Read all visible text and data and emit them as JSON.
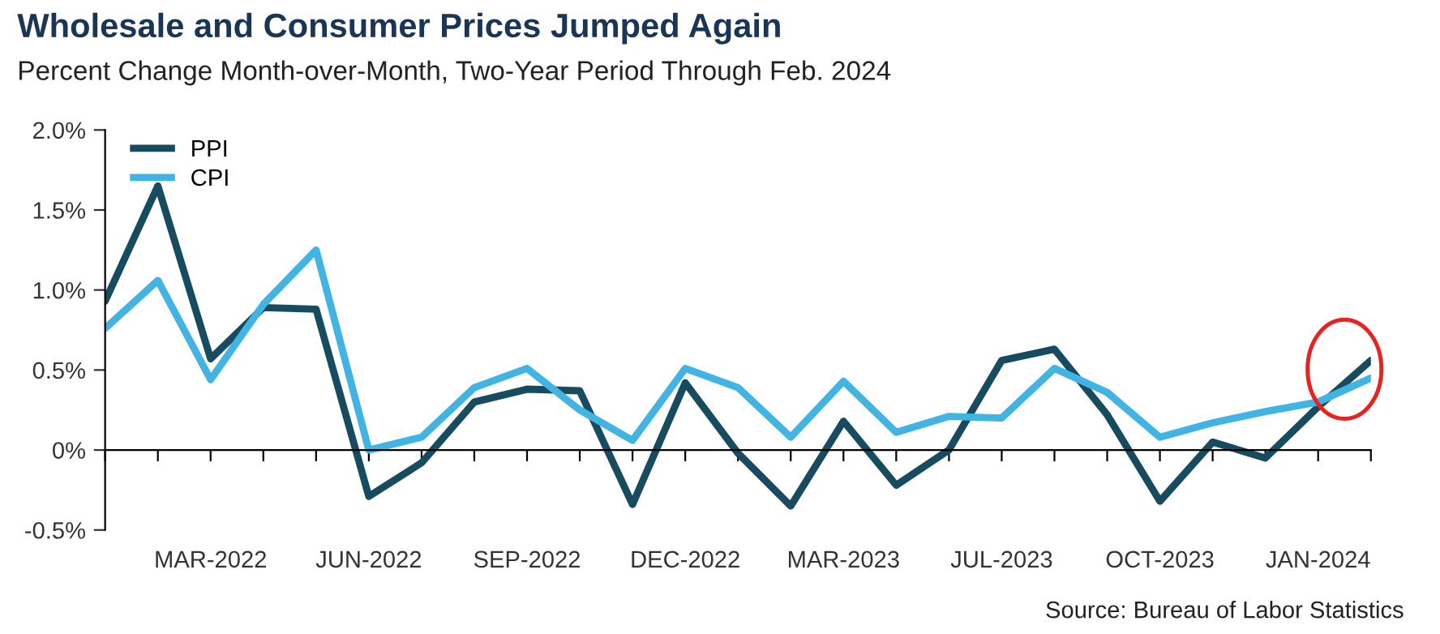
{
  "chart_data": {
    "type": "line",
    "title": "Wholesale and Consumer Prices Jumped Again",
    "subtitle": "Percent Change Month-over-Month, Two-Year Period Through Feb. 2024",
    "annotations": [
      "Source: Bureau of Labor Statistics"
    ],
    "categories": [
      null,
      null,
      "MAR-2022",
      null,
      null,
      "JUN-2022",
      null,
      null,
      "SEP-2022",
      null,
      null,
      "DEC-2022",
      null,
      null,
      "MAR-2023",
      null,
      null,
      "JUL-2023",
      null,
      null,
      "OCT-2023",
      null,
      null,
      "JAN-2024",
      null
    ],
    "series": [
      {
        "name": "PPI",
        "color": "#174b60",
        "values": [
          0.93,
          1.65,
          0.57,
          0.89,
          0.88,
          -0.29,
          -0.08,
          0.3,
          0.38,
          0.37,
          -0.34,
          0.42,
          -0.02,
          -0.35,
          0.18,
          -0.22,
          0.0,
          0.56,
          0.63,
          0.22,
          -0.32,
          0.05,
          -0.05,
          0.27,
          0.56
        ]
      },
      {
        "name": "CPI",
        "color": "#42b4e4",
        "values": [
          0.76,
          1.06,
          0.44,
          0.91,
          1.25,
          0.0,
          0.08,
          0.39,
          0.51,
          0.25,
          0.06,
          0.51,
          0.39,
          0.08,
          0.43,
          0.11,
          0.21,
          0.2,
          0.51,
          0.36,
          0.08,
          0.17,
          0.24,
          0.3,
          0.45
        ]
      }
    ],
    "ylim": [
      -0.5,
      2.0
    ],
    "yticks": [
      {
        "value": -0.5,
        "label": "-0.5%"
      },
      {
        "value": 0,
        "label": "0%"
      },
      {
        "value": 0.5,
        "label": "0.5%"
      },
      {
        "value": 1.0,
        "label": "1.0%"
      },
      {
        "value": 1.5,
        "label": "1.5%"
      },
      {
        "value": 2.0,
        "label": "2.0%"
      }
    ],
    "legend": "top left",
    "marker": "none",
    "line_style": "solid"
  }
}
